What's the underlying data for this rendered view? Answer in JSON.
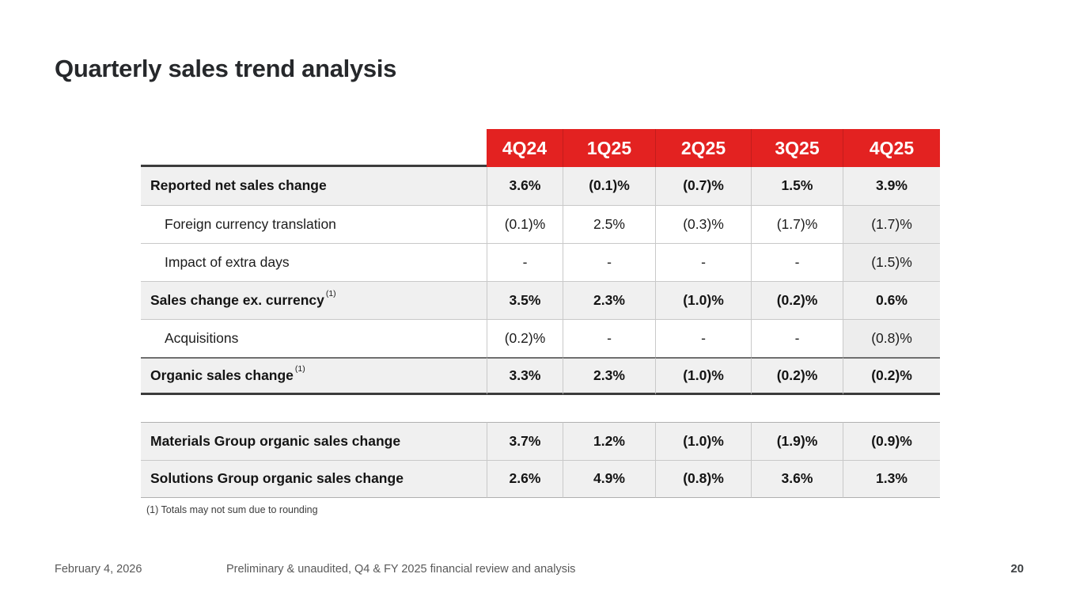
{
  "colors": {
    "red": "#e32221"
  },
  "title": "Quarterly sales trend analysis",
  "table": {
    "columns": [
      "4Q24",
      "1Q25",
      "2Q25",
      "3Q25",
      "4Q25"
    ],
    "rows": [
      {
        "label": "Reported net sales change",
        "sup": "",
        "values": [
          "3.6%",
          "(0.1)%",
          "(0.7)%",
          "1.5%",
          "3.9%"
        ]
      },
      {
        "label": "Foreign currency translation",
        "sup": "",
        "values": [
          "(0.1)%",
          "2.5%",
          "(0.3)%",
          "(1.7)%",
          "(1.7)%"
        ]
      },
      {
        "label": "Impact of extra days",
        "sup": "",
        "values": [
          "-",
          "-",
          "-",
          "-",
          "(1.5)%"
        ]
      },
      {
        "label": "Sales change ex. currency",
        "sup": "(1)",
        "values": [
          "3.5%",
          "2.3%",
          "(1.0)%",
          "(0.2)%",
          "0.6%"
        ]
      },
      {
        "label": "Acquisitions",
        "sup": "",
        "values": [
          "(0.2)%",
          "-",
          "-",
          "-",
          "(0.8)%"
        ]
      },
      {
        "label": "Organic sales change",
        "sup": "(1)",
        "values": [
          "3.3%",
          "2.3%",
          "(1.0)%",
          "(0.2)%",
          "(0.2)%"
        ]
      }
    ]
  },
  "groups": {
    "rows": [
      {
        "label": "Materials Group organic sales change",
        "values": [
          "3.7%",
          "1.2%",
          "(1.0)%",
          "(1.9)%",
          "(0.9)%"
        ]
      },
      {
        "label": "Solutions Group organic sales change",
        "values": [
          "2.6%",
          "4.9%",
          "(0.8)%",
          "3.6%",
          "1.3%"
        ]
      }
    ]
  },
  "footnote": "(1) Totals may not sum due to rounding",
  "footer": {
    "date": "February 4, 2026",
    "doc": "Preliminary & unaudited, Q4 & FY 2025 financial review and analysis",
    "page": "20"
  }
}
